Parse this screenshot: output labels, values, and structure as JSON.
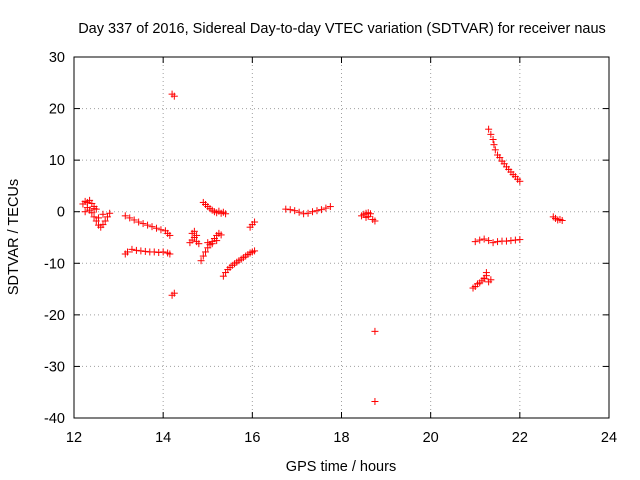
{
  "chart_data": {
    "type": "scatter",
    "title": "Day 337 of 2016, Sidereal Day-to-day VTEC variation (SDTVAR) for receiver naus",
    "xlabel": "GPS time / hours",
    "ylabel": "SDTVAR / TECUs",
    "xlim": [
      12,
      24
    ],
    "ylim": [
      -40,
      30
    ],
    "xticks": [
      12,
      14,
      16,
      18,
      20,
      22,
      24
    ],
    "yticks": [
      -40,
      -30,
      -20,
      -10,
      0,
      10,
      20,
      30
    ],
    "grid": true,
    "marker": "+",
    "color": "#ff0000",
    "series": [
      {
        "name": "SDTVAR",
        "points": [
          [
            12.2,
            1.5
          ],
          [
            12.25,
            2.0
          ],
          [
            12.3,
            1.8
          ],
          [
            12.35,
            2.2
          ],
          [
            12.4,
            1.6
          ],
          [
            12.45,
            1.0
          ],
          [
            12.5,
            0.5
          ],
          [
            12.3,
            0.8
          ],
          [
            12.35,
            0.3
          ],
          [
            12.25,
            0.0
          ],
          [
            12.4,
            -0.2
          ],
          [
            12.45,
            0.6
          ],
          [
            12.45,
            -1.0
          ],
          [
            12.5,
            -1.8
          ],
          [
            12.55,
            -2.6
          ],
          [
            12.6,
            -3.0
          ],
          [
            12.65,
            -2.5
          ],
          [
            12.7,
            -1.8
          ],
          [
            12.75,
            -1.0
          ],
          [
            12.8,
            -0.3
          ],
          [
            12.55,
            -1.2
          ],
          [
            12.65,
            -0.5
          ],
          [
            13.15,
            -0.8
          ],
          [
            13.25,
            -1.2
          ],
          [
            13.35,
            -1.6
          ],
          [
            13.45,
            -2.0
          ],
          [
            13.55,
            -2.3
          ],
          [
            13.65,
            -2.6
          ],
          [
            13.75,
            -2.9
          ],
          [
            13.85,
            -3.2
          ],
          [
            13.95,
            -3.5
          ],
          [
            14.05,
            -3.7
          ],
          [
            14.1,
            -4.2
          ],
          [
            14.15,
            -4.6
          ],
          [
            13.15,
            -8.2
          ],
          [
            13.2,
            -7.8
          ],
          [
            13.3,
            -7.3
          ],
          [
            13.4,
            -7.5
          ],
          [
            13.5,
            -7.6
          ],
          [
            13.6,
            -7.7
          ],
          [
            13.7,
            -7.8
          ],
          [
            13.8,
            -7.8
          ],
          [
            13.9,
            -7.9
          ],
          [
            14.0,
            -7.8
          ],
          [
            14.1,
            -8.0
          ],
          [
            14.15,
            -8.2
          ],
          [
            14.2,
            22.8
          ],
          [
            14.25,
            22.4
          ],
          [
            14.25,
            -15.8
          ],
          [
            14.2,
            -16.2
          ],
          [
            14.6,
            -6.0
          ],
          [
            14.65,
            -5.5
          ],
          [
            14.7,
            -5.0
          ],
          [
            14.75,
            -4.6
          ],
          [
            14.65,
            -4.2
          ],
          [
            14.7,
            -3.8
          ],
          [
            14.75,
            -5.8
          ],
          [
            14.8,
            -6.2
          ],
          [
            14.85,
            -9.5
          ],
          [
            14.9,
            -8.6
          ],
          [
            14.95,
            -7.8
          ],
          [
            15.0,
            -7.0
          ],
          [
            15.05,
            -6.4
          ],
          [
            15.1,
            -5.8
          ],
          [
            15.15,
            -5.2
          ],
          [
            15.2,
            -4.6
          ],
          [
            15.25,
            -4.2
          ],
          [
            15.3,
            -4.5
          ],
          [
            15.0,
            -6.0
          ],
          [
            15.1,
            -6.2
          ],
          [
            15.2,
            -5.6
          ],
          [
            14.9,
            1.8
          ],
          [
            14.95,
            1.4
          ],
          [
            15.0,
            1.0
          ],
          [
            15.05,
            0.6
          ],
          [
            15.1,
            0.3
          ],
          [
            15.15,
            0.0
          ],
          [
            15.2,
            -0.2
          ],
          [
            15.25,
            0.1
          ],
          [
            15.3,
            -0.3
          ],
          [
            15.35,
            -0.1
          ],
          [
            15.4,
            -0.4
          ],
          [
            15.35,
            -12.5
          ],
          [
            15.4,
            -11.8
          ],
          [
            15.45,
            -11.2
          ],
          [
            15.5,
            -10.8
          ],
          [
            15.55,
            -10.4
          ],
          [
            15.6,
            -10.1
          ],
          [
            15.65,
            -9.8
          ],
          [
            15.7,
            -9.5
          ],
          [
            15.75,
            -9.2
          ],
          [
            15.8,
            -8.9
          ],
          [
            15.85,
            -8.6
          ],
          [
            15.9,
            -8.3
          ],
          [
            15.95,
            -8.0
          ],
          [
            16.0,
            -7.8
          ],
          [
            16.05,
            -7.6
          ],
          [
            15.95,
            -3.0
          ],
          [
            16.0,
            -2.5
          ],
          [
            16.05,
            -2.0
          ],
          [
            16.75,
            0.5
          ],
          [
            16.85,
            0.4
          ],
          [
            16.95,
            0.2
          ],
          [
            17.05,
            -0.1
          ],
          [
            17.15,
            -0.4
          ],
          [
            17.25,
            -0.3
          ],
          [
            17.35,
            0.0
          ],
          [
            17.45,
            0.2
          ],
          [
            17.55,
            0.4
          ],
          [
            17.65,
            0.7
          ],
          [
            17.75,
            1.0
          ],
          [
            18.45,
            -0.8
          ],
          [
            18.5,
            -0.5
          ],
          [
            18.55,
            -0.3
          ],
          [
            18.6,
            -0.2
          ],
          [
            18.65,
            -0.4
          ],
          [
            18.7,
            -1.5
          ],
          [
            18.75,
            -1.8
          ],
          [
            18.6,
            -0.9
          ],
          [
            18.55,
            -1.1
          ],
          [
            18.75,
            -23.2
          ],
          [
            18.75,
            -36.8
          ],
          [
            20.95,
            -14.8
          ],
          [
            21.0,
            -14.5
          ],
          [
            21.05,
            -14.0
          ],
          [
            21.1,
            -13.8
          ],
          [
            21.15,
            -13.4
          ],
          [
            21.2,
            -12.9
          ],
          [
            21.25,
            -12.4
          ],
          [
            21.2,
            -13.0
          ],
          [
            21.3,
            -13.6
          ],
          [
            21.35,
            -13.2
          ],
          [
            21.25,
            -11.8
          ],
          [
            21.0,
            -5.8
          ],
          [
            21.1,
            -5.5
          ],
          [
            21.2,
            -5.3
          ],
          [
            21.3,
            -5.6
          ],
          [
            21.4,
            -6.0
          ],
          [
            21.5,
            -5.8
          ],
          [
            21.6,
            -5.7
          ],
          [
            21.7,
            -5.7
          ],
          [
            21.8,
            -5.6
          ],
          [
            21.9,
            -5.5
          ],
          [
            22.0,
            -5.4
          ],
          [
            21.3,
            16.0
          ],
          [
            21.35,
            15.0
          ],
          [
            21.4,
            14.0
          ],
          [
            21.42,
            13.0
          ],
          [
            21.45,
            12.0
          ],
          [
            21.5,
            11.0
          ],
          [
            21.55,
            10.5
          ],
          [
            21.6,
            9.8
          ],
          [
            21.65,
            9.3
          ],
          [
            21.7,
            8.7
          ],
          [
            21.75,
            8.2
          ],
          [
            21.8,
            7.7
          ],
          [
            21.85,
            7.2
          ],
          [
            21.9,
            6.8
          ],
          [
            21.95,
            6.3
          ],
          [
            22.0,
            5.9
          ],
          [
            22.75,
            -1.0
          ],
          [
            22.8,
            -1.3
          ],
          [
            22.85,
            -1.6
          ],
          [
            22.9,
            -1.5
          ],
          [
            22.95,
            -1.7
          ]
        ]
      }
    ]
  }
}
